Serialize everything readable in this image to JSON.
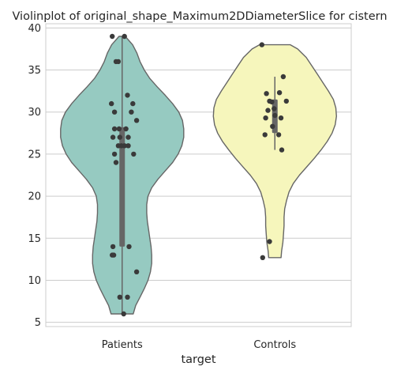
{
  "chart_data": {
    "type": "violin",
    "title": "Violinplot of original_shape_Maximum2DDiameterSlice for cistern",
    "xlabel": "target",
    "ylabel": "",
    "ylim": [
      4.5,
      40.5
    ],
    "yticks": [
      5,
      10,
      15,
      20,
      25,
      30,
      35,
      40
    ],
    "grid": true,
    "categories": [
      "Patients",
      "Controls"
    ],
    "colors": {
      "Patients": "#96cac1",
      "Controls": "#f6f6bc"
    },
    "groups": [
      {
        "name": "Patients",
        "min": 6,
        "q1": 14,
        "median": 26,
        "q3": 28.2,
        "max": 39,
        "violin_profile": [
          [
            6,
            0.18
          ],
          [
            7,
            0.22
          ],
          [
            8,
            0.29
          ],
          [
            9,
            0.36
          ],
          [
            10,
            0.42
          ],
          [
            11,
            0.46
          ],
          [
            12,
            0.48
          ],
          [
            13,
            0.48
          ],
          [
            14,
            0.47
          ],
          [
            15,
            0.45
          ],
          [
            16,
            0.43
          ],
          [
            17,
            0.41
          ],
          [
            18,
            0.4
          ],
          [
            19,
            0.4
          ],
          [
            20,
            0.42
          ],
          [
            21,
            0.48
          ],
          [
            22,
            0.58
          ],
          [
            23,
            0.7
          ],
          [
            24,
            0.82
          ],
          [
            25,
            0.91
          ],
          [
            26,
            0.97
          ],
          [
            27,
            1.0
          ],
          [
            28,
            1.0
          ],
          [
            29,
            0.98
          ],
          [
            30,
            0.92
          ],
          [
            31,
            0.82
          ],
          [
            32,
            0.7
          ],
          [
            33,
            0.57
          ],
          [
            34,
            0.45
          ],
          [
            35,
            0.36
          ],
          [
            36,
            0.29
          ],
          [
            37,
            0.24
          ],
          [
            38,
            0.17
          ],
          [
            39,
            0.05
          ]
        ],
        "points": [
          [
            -0.13,
            39
          ],
          [
            0.03,
            39
          ],
          [
            -0.08,
            36
          ],
          [
            -0.05,
            36
          ],
          [
            0.07,
            32
          ],
          [
            -0.14,
            31
          ],
          [
            0.14,
            31
          ],
          [
            -0.1,
            30
          ],
          [
            0.12,
            30
          ],
          [
            0.19,
            29
          ],
          [
            -0.1,
            28
          ],
          [
            -0.04,
            28
          ],
          [
            0.05,
            28
          ],
          [
            -0.12,
            27
          ],
          [
            -0.03,
            27
          ],
          [
            0.08,
            27
          ],
          [
            -0.05,
            26
          ],
          [
            -0.01,
            26
          ],
          [
            0.03,
            26
          ],
          [
            0.08,
            26
          ],
          [
            -0.1,
            25
          ],
          [
            0.15,
            25
          ],
          [
            -0.08,
            24
          ],
          [
            -0.12,
            14
          ],
          [
            0.09,
            14
          ],
          [
            -0.13,
            13
          ],
          [
            -0.11,
            13
          ],
          [
            0.19,
            11
          ],
          [
            -0.03,
            8
          ],
          [
            0.07,
            8
          ],
          [
            0.02,
            6
          ]
        ]
      },
      {
        "name": "Controls",
        "min": 25.5,
        "q1": 27.5,
        "median": 30,
        "q3": 31.5,
        "max": 34.2,
        "violin_profile": [
          [
            12.7,
            0.1
          ],
          [
            13.5,
            0.11
          ],
          [
            14.5,
            0.13
          ],
          [
            15.5,
            0.14
          ],
          [
            16.5,
            0.15
          ],
          [
            17.5,
            0.15
          ],
          [
            18.5,
            0.16
          ],
          [
            19.5,
            0.19
          ],
          [
            20.5,
            0.23
          ],
          [
            21.5,
            0.3
          ],
          [
            22.5,
            0.4
          ],
          [
            23.5,
            0.52
          ],
          [
            24.5,
            0.64
          ],
          [
            25.5,
            0.75
          ],
          [
            26.5,
            0.85
          ],
          [
            27.5,
            0.93
          ],
          [
            28.5,
            0.98
          ],
          [
            29.5,
            1.0
          ],
          [
            30.5,
            0.99
          ],
          [
            31.5,
            0.95
          ],
          [
            32.5,
            0.87
          ],
          [
            33.5,
            0.78
          ],
          [
            34.5,
            0.69
          ],
          [
            35.5,
            0.6
          ],
          [
            36.5,
            0.51
          ],
          [
            37.5,
            0.37
          ],
          [
            38,
            0.25
          ]
        ],
        "points": [
          [
            -0.17,
            38
          ],
          [
            0.11,
            34.2
          ],
          [
            0.06,
            32.3
          ],
          [
            -0.11,
            32.2
          ],
          [
            0.15,
            31.3
          ],
          [
            -0.07,
            31.3
          ],
          [
            -0.04,
            31.2
          ],
          [
            -0.01,
            30.4
          ],
          [
            -0.09,
            30.2
          ],
          [
            0.0,
            29.6
          ],
          [
            -0.12,
            29.3
          ],
          [
            0.08,
            29.3
          ],
          [
            -0.03,
            28.3
          ],
          [
            -0.13,
            27.3
          ],
          [
            0.05,
            27.3
          ],
          [
            0.09,
            25.5
          ],
          [
            -0.07,
            14.6
          ],
          [
            -0.16,
            12.7
          ]
        ]
      }
    ]
  }
}
